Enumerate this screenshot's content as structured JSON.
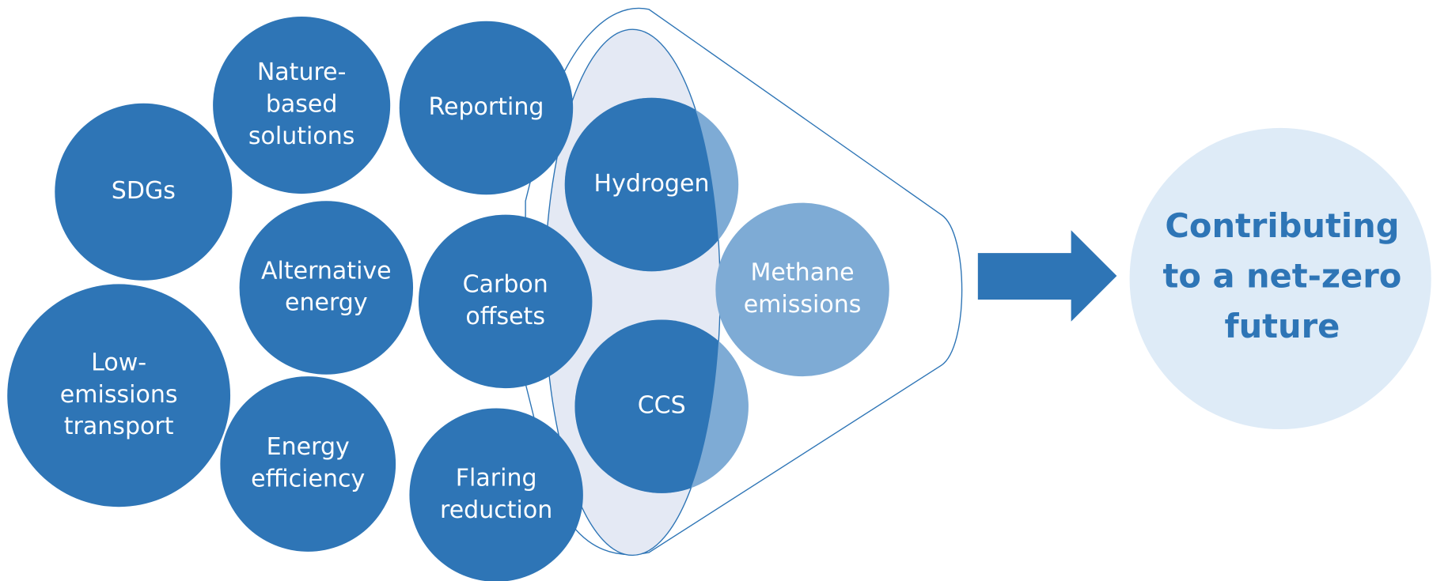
{
  "nodes": [
    {
      "lines": [
        "SDGs"
      ]
    },
    {
      "lines": [
        "Nature-",
        "based",
        "solutions"
      ]
    },
    {
      "lines": [
        "Reporting"
      ]
    },
    {
      "lines": [
        "Alternative",
        "energy"
      ]
    },
    {
      "lines": [
        "Low-",
        "emissions",
        "transport"
      ]
    },
    {
      "lines": [
        "Energy",
        "efficiency"
      ]
    },
    {
      "lines": [
        "Carbon",
        "offsets"
      ]
    },
    {
      "lines": [
        "Flaring",
        "reduction"
      ]
    },
    {
      "lines": [
        "Hydrogen"
      ]
    },
    {
      "lines": [
        "Methane",
        "emissions"
      ]
    },
    {
      "lines": [
        "CCS"
      ]
    }
  ],
  "outcome": {
    "lines": [
      "Contributing",
      "to a net-zero",
      "future"
    ]
  }
}
